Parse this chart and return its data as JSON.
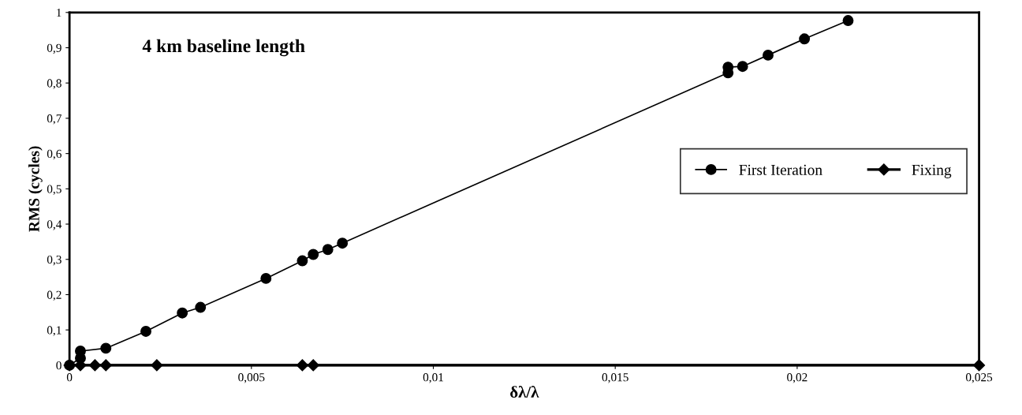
{
  "chart_data": {
    "type": "line",
    "title": "4 km baseline length",
    "xlabel": "δλ/λ",
    "ylabel": "RMS (cycles)",
    "xlim": [
      0,
      0.025
    ],
    "xticks": [
      0,
      {
        "value": 0.005,
        "label": "0,005"
      },
      {
        "value": 0.01,
        "label": "0,01"
      },
      {
        "value": 0.015,
        "label": "0,015"
      },
      {
        "value": 0.02,
        "label": "0,02"
      },
      {
        "value": 0.025,
        "label": "0,025"
      }
    ],
    "ylim": [
      0,
      1
    ],
    "yticks": [
      0,
      {
        "value": 0.1,
        "label": "0,1"
      },
      {
        "value": 0.2,
        "label": "0,2"
      },
      {
        "value": 0.3,
        "label": "0,3"
      },
      {
        "value": 0.4,
        "label": "0,4"
      },
      {
        "value": 0.5,
        "label": "0,5"
      },
      {
        "value": 0.6,
        "label": "0,6"
      },
      {
        "value": 0.7,
        "label": "0,7"
      },
      {
        "value": 0.8,
        "label": "0,8"
      },
      {
        "value": 0.9,
        "label": "0,9"
      },
      1
    ],
    "grid": false,
    "legend": "right",
    "line_style": "solid",
    "series": [
      {
        "name": "First Iteration",
        "color": "#000000",
        "marker": "circle",
        "x": [
          0,
          0.0003,
          0.0003,
          0.001,
          0.0021,
          0.0031,
          0.0036,
          0.0054,
          0.0064,
          0.0067,
          0.0071,
          0.0075,
          0.0181,
          0.0181,
          0.0185,
          0.0192,
          0.0202,
          0.0214
        ],
        "values": [
          0,
          0.02,
          0.04,
          0.048,
          0.096,
          0.148,
          0.164,
          0.246,
          0.296,
          0.314,
          0.328,
          0.346,
          0.829,
          0.845,
          0.847,
          0.879,
          0.925,
          0.977
        ]
      },
      {
        "name": "Fixing",
        "color": "#000000",
        "marker": "diamond",
        "x": [
          0,
          0.0003,
          0.0007,
          0.001,
          0.0024,
          0.0064,
          0.0067,
          0.025
        ],
        "values": [
          0,
          0,
          0,
          0,
          0,
          0,
          0,
          0
        ]
      }
    ]
  }
}
